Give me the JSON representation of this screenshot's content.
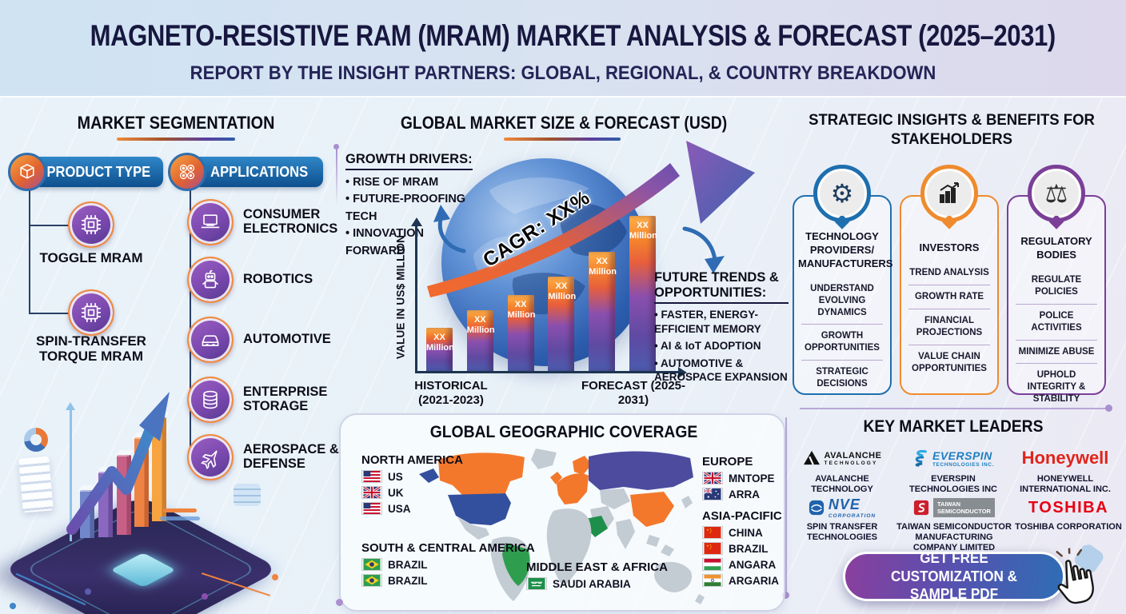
{
  "colors": {
    "navy": "#17173f",
    "orange": "#f0862f",
    "purple": "#7b3f98",
    "blue": "#1e6fae",
    "honeywell_red": "#e2231a",
    "toshiba_red": "#e60012"
  },
  "header": {
    "title": "MAGNETO-RESISTIVE RAM (MRAM) MARKET ANALYSIS & FORECAST (2025–2031)",
    "subtitle": "REPORT BY THE INSIGHT PARTNERS: GLOBAL, REGIONAL, & COUNTRY BREAKDOWN"
  },
  "segmentation": {
    "title": "MARKET SEGMENTATION",
    "product_type": {
      "label": "PRODUCT TYPE",
      "items": [
        "TOGGLE MRAM",
        "SPIN-TRANSFER TORQUE MRAM"
      ]
    },
    "applications": {
      "label": "APPLICATIONS",
      "items": [
        "CONSUMER ELECTRONICS",
        "ROBOTICS",
        "AUTOMOTIVE",
        "ENTERPRISE STORAGE",
        "AEROSPACE & DEFENSE"
      ]
    }
  },
  "market": {
    "title": "GLOBAL MARKET SIZE & FORECAST (USD)",
    "growth_drivers_heading": "GROWTH DRIVERS:",
    "growth_drivers": [
      "RISE OF MRAM",
      "FUTURE-PROOFING TECH",
      "INNOVATION FORWARD"
    ],
    "future_trends_heading": "FUTURE TRENDS & OPPORTUNITIES:",
    "future_trends": [
      "FASTER, ENERGY-EFFICIENT MEMORY",
      "AI & IoT ADOPTION",
      "AUTOMOTIVE & AEROSPACE EXPANSION"
    ]
  },
  "chart_data": {
    "type": "bar",
    "title": "GLOBAL MARKET SIZE & FORECAST (USD)",
    "ylabel": "VALUE IN US$ MILLION",
    "x_groups": [
      "HISTORICAL (2021-2023)",
      "FORECAST (2025-2031)"
    ],
    "cagr_annotation": "CAGR: XX%",
    "values_note": "values masked in source",
    "bars": [
      {
        "label": "XX Million",
        "rel_height": 0.28
      },
      {
        "label": "XX Million",
        "rel_height": 0.39
      },
      {
        "label": "XX Million",
        "rel_height": 0.49
      },
      {
        "label": "XX Million",
        "rel_height": 0.61
      },
      {
        "label": "XX Million",
        "rel_height": 0.77
      },
      {
        "label": "XX Million",
        "rel_height": 1.0
      }
    ]
  },
  "geography": {
    "title": "GLOBAL GEOGRAPHIC COVERAGE",
    "regions": [
      {
        "name": "NORTH AMERICA",
        "items": [
          {
            "flag": "us",
            "label": "US"
          },
          {
            "flag": "uk",
            "label": "UK"
          },
          {
            "flag": "us",
            "label": "USA"
          }
        ]
      },
      {
        "name": "SOUTH & CENTRAL AMERICA",
        "items": [
          {
            "flag": "brazil",
            "label": "BRAZIL"
          },
          {
            "flag": "brazil",
            "label": "BRAZIL"
          }
        ]
      },
      {
        "name": "MIDDLE EAST & AFRICA",
        "items": [
          {
            "flag": "saudi-arabia",
            "label": "SAUDI ARABIA"
          }
        ]
      },
      {
        "name": "EUROPE",
        "items": [
          {
            "flag": "uk",
            "label": "MNTOPE"
          },
          {
            "flag": "australia",
            "label": "ARRA"
          }
        ]
      },
      {
        "name": "ASIA-PACIFIC",
        "items": [
          {
            "flag": "china",
            "label": "CHINA"
          },
          {
            "flag": "china",
            "label": "BRAZIL"
          },
          {
            "flag": "hungary",
            "label": "ANGARA"
          },
          {
            "flag": "india",
            "label": "ARGARIA"
          }
        ]
      }
    ]
  },
  "stakeholders": {
    "title": "STRATEGIC INSIGHTS & BENEFITS FOR STAKEHOLDERS",
    "cards": [
      {
        "title": "TECHNOLOGY PROVIDERS/ MANUFACTURERS",
        "accent": "#1e6fae",
        "items": [
          "UNDERSTAND EVOLVING DYNAMICS",
          "GROWTH OPPORTUNITIES",
          "STRATEGIC DECISIONS"
        ]
      },
      {
        "title": "INVESTORS",
        "accent": "#ef8b2e",
        "items": [
          "TREND ANALYSIS",
          "GROWTH RATE",
          "FINANCIAL PROJECTIONS",
          "VALUE CHAIN OPPORTUNITIES"
        ]
      },
      {
        "title": "REGULATORY BODIES",
        "accent": "#7b3f98",
        "items": [
          "REGULATE POLICIES",
          "POLICE ACTIVITIES",
          "MINIMIZE ABUSE",
          "UPHOLD INTEGRITY & STABILITY"
        ]
      }
    ]
  },
  "leaders": {
    "title": "KEY MARKET LEADERS",
    "items": [
      {
        "logo_line1": "AVALANCHE",
        "logo_line2": "TECHNOLOGY",
        "caption": "AVALANCHE TECHNOLOGY"
      },
      {
        "logo_line1": "EVERSPIN",
        "logo_line2": "TECHNOLOGIES INC.",
        "caption": "EVERSPIN TECHNOLOGIES INC"
      },
      {
        "logo_line1": "Honeywell",
        "logo_line2": "",
        "caption": "HONEYWELL INTERNATIONAL INC."
      },
      {
        "logo_line1": "NVE",
        "logo_line2": "CORPORATION",
        "caption": "SPIN TRANSFER TECHNOLOGIES"
      },
      {
        "logo_line1": "TAIWAN",
        "logo_line2": "SEMICONDUCTOR",
        "caption": "TAIWAN SEMICONDUCTOR MANUFACTURING COMPANY LIMITED"
      },
      {
        "logo_line1": "TOSHIBA",
        "logo_line2": "",
        "caption": "TOSHIBA CORPORATION"
      }
    ]
  },
  "cta": {
    "label": "GET FREE CUSTOMIZATION & SAMPLE PDF"
  }
}
